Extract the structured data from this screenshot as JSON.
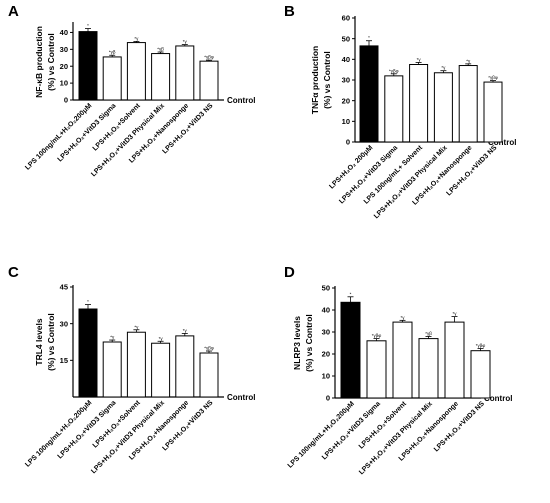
{
  "chart_data": [
    {
      "type": "bar",
      "panel": "A",
      "ylabel": [
        "NF-κB production",
        "(%) vs Control"
      ],
      "ylim": [
        0,
        45
      ],
      "yticks": [
        0,
        10,
        20,
        30,
        40
      ],
      "control_label": "Control",
      "categories": [
        "LPS 100ng/mL+H₂O₂200μM",
        "LPS+H₂O₂+VitD3 Sigma",
        "LPS+H₂O₂+Solvent",
        "LPS+H₂O₂+VitD3 Physical Mix",
        "LPS+H₂O₂+Nanosponge",
        "LPS+H₂O₂+VitD3 NS"
      ],
      "values": [
        40.5,
        25.5,
        34,
        27.5,
        32,
        23
      ],
      "errors": [
        1.8,
        1.0,
        0.7,
        0.9,
        0.8,
        0.6
      ],
      "fills": [
        "#000000",
        "#ffffff",
        "#ffffff",
        "#ffffff",
        "#ffffff",
        "#ffffff"
      ],
      "annotations": [
        "*",
        "*γβ",
        "*γ",
        "*γβ",
        "*γ",
        "*γβφ"
      ]
    },
    {
      "type": "bar",
      "panel": "B",
      "ylabel": [
        "TNFα production",
        "(%) vs Control"
      ],
      "ylim": [
        0,
        60
      ],
      "yticks": [
        0,
        10,
        20,
        30,
        40,
        50,
        60
      ],
      "control_label": "Control",
      "categories": [
        "LPS+H₂O₂ 200μM",
        "LPS+H₂O₂+VitD3 Sigma",
        "LPS 100ng/mL+ Solvent",
        "LPS+H₂O₂+VitD3 Physical Mix",
        "LPS+H₂O₂+Nanosponge",
        "LPS+H₂O₂+VitD3 NS"
      ],
      "values": [
        46.5,
        32,
        37.5,
        33.5,
        37,
        29
      ],
      "errors": [
        2.5,
        1.0,
        1.0,
        1.0,
        0.8,
        0.7
      ],
      "fills": [
        "#000000",
        "#ffffff",
        "#ffffff",
        "#ffffff",
        "#ffffff",
        "#ffffff"
      ],
      "annotations": [
        "*",
        "*γβφ",
        "*γ",
        "*γ",
        "*γ",
        "*γβφ"
      ]
    },
    {
      "type": "bar",
      "panel": "C",
      "ylabel": [
        "TRL4 levels",
        "(%) vs Control"
      ],
      "ylim": [
        0,
        45
      ],
      "yticks": [
        15,
        30,
        45
      ],
      "control_label": "Control",
      "categories": [
        "LPS 100ng/mL+H₂O₂200μM",
        "LPS+H₂O₂+VitD3 Sigma",
        "LPS+H₂O₂+Solvent",
        "LPS+H₂O₂+VitD3 Physical Mix",
        "LPS+H₂O₂+Nanosponge",
        "LPS+H₂O₂+VitD3 NS"
      ],
      "values": [
        36,
        22.5,
        26.5,
        22,
        25,
        18
      ],
      "errors": [
        1.8,
        0.8,
        1.0,
        0.8,
        1.0,
        0.8
      ],
      "fills": [
        "#000000",
        "#ffffff",
        "#ffffff",
        "#ffffff",
        "#ffffff",
        "#ffffff"
      ],
      "annotations": [
        "*",
        "*γ",
        "*γ",
        "*γ",
        "*γ",
        "*γβφ"
      ]
    },
    {
      "type": "bar",
      "panel": "D",
      "ylabel": [
        "NLRP3 levels",
        "(%) vs Control"
      ],
      "ylim": [
        0,
        50
      ],
      "yticks": [
        0,
        10,
        20,
        30,
        40,
        50
      ],
      "control_label": "Control",
      "categories": [
        "LPS 100ng/mL+H₂O₂200μM",
        "LPS+H₂O₂+VitD3 Sigma",
        "LPS+H₂O₂+Solvent",
        "LPS+H₂O₂+VitD3 Physical Mix",
        "LPS+H₂O₂+Nanosponge",
        "LPS+H₂O₂+VitD3 NS"
      ],
      "values": [
        43.5,
        26,
        34.5,
        27,
        34.5,
        21.5
      ],
      "errors": [
        2.5,
        1.0,
        0.8,
        1.0,
        2.5,
        1.0
      ],
      "fills": [
        "#000000",
        "#ffffff",
        "#ffffff",
        "#ffffff",
        "#ffffff",
        "#ffffff"
      ],
      "annotations": [
        "*",
        "*γβφ",
        "*γ",
        "*γβ",
        "*γ",
        "*γβφ"
      ]
    }
  ]
}
